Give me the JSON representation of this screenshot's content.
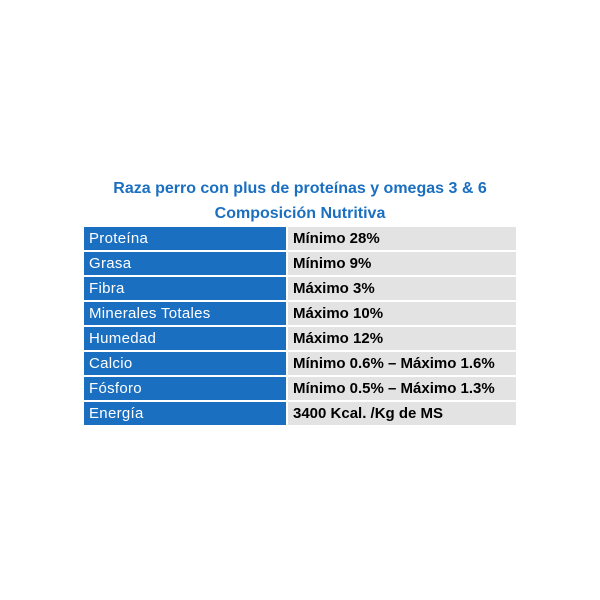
{
  "header": {
    "title": "Raza perro con plus de proteínas y omegas 3 & 6",
    "subtitle": "Composición Nutritiva"
  },
  "colors": {
    "accent": "#1b6fc0",
    "label_bg": "#1b6fc0",
    "value_bg": "#e3e3e3"
  },
  "rows": [
    {
      "label": "Proteína",
      "value": "Mínimo 28%"
    },
    {
      "label": "Grasa",
      "value": "Mínimo 9%"
    },
    {
      "label": "Fibra",
      "value": "Máximo 3%"
    },
    {
      "label": "Minerales Totales",
      "value": "Máximo 10%"
    },
    {
      "label": "Humedad",
      "value": "Máximo 12%"
    },
    {
      "label": "Calcio",
      "value": "Mínimo 0.6% – Máximo 1.6%"
    },
    {
      "label": "Fósforo",
      "value": "Mínimo 0.5% – Máximo 1.3%"
    },
    {
      "label": "Energía",
      "value": "3400 Kcal. /Kg de MS"
    }
  ]
}
